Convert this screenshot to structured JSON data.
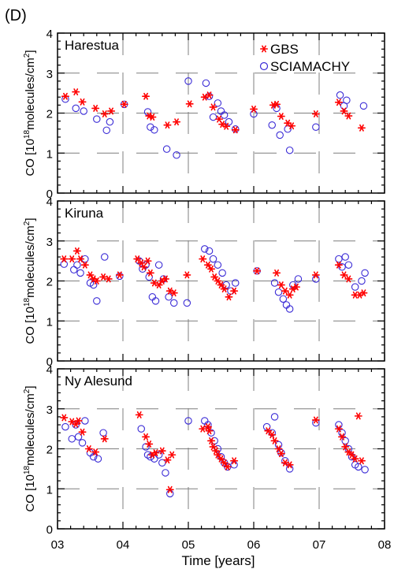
{
  "figure_label": "(D)",
  "colors": {
    "gbs": "#ff0000",
    "sciamachy": "#3a2bd6",
    "grid": "#7f7f7f"
  },
  "chart_data": {
    "type": "scatter",
    "xlabel": "Time [years]",
    "ylabel_base": "CO [10",
    "ylabel_exp": "18",
    "ylabel_mid": "molecules/cm",
    "ylabel_exp2": "2",
    "ylabel_end": "]",
    "x_ticks": [
      "03",
      "04",
      "05",
      "06",
      "07",
      "08"
    ],
    "xlim": [
      2003,
      2008
    ],
    "ylim": [
      0,
      4
    ],
    "y_ticks": [
      "0",
      "1",
      "2",
      "3",
      "4"
    ],
    "grid": true,
    "legend": {
      "placement": "top-right",
      "entries": [
        "GBS",
        "SCIAMACHY"
      ]
    },
    "panels": [
      {
        "name": "Harestua",
        "show_legend": true,
        "gbs": [
          [
            2003.12,
            2.42
          ],
          [
            2003.28,
            2.53
          ],
          [
            2003.38,
            2.28
          ],
          [
            2003.58,
            2.12
          ],
          [
            2003.72,
            1.98
          ],
          [
            2003.82,
            2.05
          ],
          [
            2004.02,
            2.22
          ],
          [
            2004.35,
            2.42
          ],
          [
            2004.4,
            1.93
          ],
          [
            2004.45,
            1.9
          ],
          [
            2004.68,
            1.7
          ],
          [
            2004.82,
            1.78
          ],
          [
            2005.02,
            2.23
          ],
          [
            2005.25,
            2.4
          ],
          [
            2005.32,
            2.45
          ],
          [
            2005.38,
            2.15
          ],
          [
            2005.47,
            1.85
          ],
          [
            2005.52,
            1.72
          ],
          [
            2005.58,
            1.67
          ],
          [
            2005.72,
            1.58
          ],
          [
            2006.0,
            2.1
          ],
          [
            2006.3,
            2.2
          ],
          [
            2006.35,
            2.22
          ],
          [
            2006.42,
            1.92
          ],
          [
            2006.52,
            1.75
          ],
          [
            2006.58,
            1.68
          ],
          [
            2006.95,
            1.98
          ],
          [
            2007.3,
            2.27
          ],
          [
            2007.38,
            2.05
          ],
          [
            2007.45,
            1.93
          ],
          [
            2007.65,
            1.63
          ]
        ],
        "sciamachy": [
          [
            2003.12,
            2.35
          ],
          [
            2003.28,
            2.12
          ],
          [
            2003.4,
            2.05
          ],
          [
            2003.6,
            1.85
          ],
          [
            2003.75,
            1.57
          ],
          [
            2003.8,
            1.78
          ],
          [
            2004.02,
            2.22
          ],
          [
            2004.38,
            2.03
          ],
          [
            2004.42,
            1.65
          ],
          [
            2004.48,
            1.58
          ],
          [
            2004.67,
            1.1
          ],
          [
            2004.82,
            0.95
          ],
          [
            2005.0,
            2.8
          ],
          [
            2005.27,
            2.75
          ],
          [
            2005.32,
            2.42
          ],
          [
            2005.38,
            1.9
          ],
          [
            2005.45,
            2.25
          ],
          [
            2005.5,
            2.05
          ],
          [
            2005.55,
            1.95
          ],
          [
            2005.62,
            1.78
          ],
          [
            2005.72,
            1.6
          ],
          [
            2006.0,
            1.98
          ],
          [
            2006.28,
            1.7
          ],
          [
            2006.35,
            2.12
          ],
          [
            2006.4,
            1.45
          ],
          [
            2006.52,
            1.6
          ],
          [
            2006.55,
            1.07
          ],
          [
            2006.95,
            1.65
          ],
          [
            2007.32,
            2.45
          ],
          [
            2007.38,
            2.18
          ],
          [
            2007.42,
            2.32
          ],
          [
            2007.68,
            2.18
          ]
        ]
      },
      {
        "name": "Kiruna",
        "show_legend": false,
        "gbs": [
          [
            2003.1,
            2.55
          ],
          [
            2003.22,
            2.55
          ],
          [
            2003.3,
            2.75
          ],
          [
            2003.35,
            2.55
          ],
          [
            2003.42,
            2.4
          ],
          [
            2003.5,
            2.15
          ],
          [
            2003.55,
            2.05
          ],
          [
            2003.6,
            2.0
          ],
          [
            2003.7,
            2.1
          ],
          [
            2003.78,
            2.05
          ],
          [
            2003.95,
            2.15
          ],
          [
            2004.22,
            2.55
          ],
          [
            2004.28,
            2.45
          ],
          [
            2004.32,
            2.35
          ],
          [
            2004.38,
            2.5
          ],
          [
            2004.42,
            2.2
          ],
          [
            2004.48,
            1.95
          ],
          [
            2004.55,
            1.9
          ],
          [
            2004.6,
            2.0
          ],
          [
            2004.65,
            2.05
          ],
          [
            2004.72,
            1.75
          ],
          [
            2004.78,
            1.7
          ],
          [
            2004.98,
            2.15
          ],
          [
            2005.22,
            2.55
          ],
          [
            2005.3,
            2.4
          ],
          [
            2005.35,
            2.3
          ],
          [
            2005.4,
            2.1
          ],
          [
            2005.45,
            2.0
          ],
          [
            2005.5,
            1.9
          ],
          [
            2005.55,
            1.8
          ],
          [
            2005.62,
            1.6
          ],
          [
            2005.7,
            1.75
          ],
          [
            2006.05,
            2.25
          ],
          [
            2006.35,
            2.2
          ],
          [
            2006.42,
            1.9
          ],
          [
            2006.48,
            1.75
          ],
          [
            2006.55,
            1.65
          ],
          [
            2006.6,
            1.8
          ],
          [
            2006.65,
            1.85
          ],
          [
            2006.95,
            2.15
          ],
          [
            2007.3,
            2.4
          ],
          [
            2007.38,
            2.15
          ],
          [
            2007.45,
            2.05
          ],
          [
            2007.55,
            1.65
          ],
          [
            2007.62,
            1.65
          ],
          [
            2007.68,
            1.7
          ]
        ],
        "sciamachy": [
          [
            2003.1,
            2.42
          ],
          [
            2003.25,
            2.28
          ],
          [
            2003.3,
            2.4
          ],
          [
            2003.35,
            2.2
          ],
          [
            2003.42,
            2.55
          ],
          [
            2003.5,
            1.95
          ],
          [
            2003.55,
            1.9
          ],
          [
            2003.6,
            1.5
          ],
          [
            2003.72,
            2.6
          ],
          [
            2003.95,
            2.12
          ],
          [
            2004.25,
            2.5
          ],
          [
            2004.3,
            2.3
          ],
          [
            2004.35,
            2.4
          ],
          [
            2004.4,
            2.1
          ],
          [
            2004.45,
            1.6
          ],
          [
            2004.5,
            1.5
          ],
          [
            2004.55,
            2.4
          ],
          [
            2004.62,
            2.05
          ],
          [
            2004.7,
            1.6
          ],
          [
            2004.78,
            1.45
          ],
          [
            2004.98,
            1.45
          ],
          [
            2005.25,
            2.8
          ],
          [
            2005.32,
            2.75
          ],
          [
            2005.38,
            2.55
          ],
          [
            2005.45,
            2.4
          ],
          [
            2005.52,
            2.2
          ],
          [
            2005.58,
            1.9
          ],
          [
            2005.65,
            1.75
          ],
          [
            2005.72,
            1.95
          ],
          [
            2006.05,
            2.25
          ],
          [
            2006.32,
            1.95
          ],
          [
            2006.38,
            1.72
          ],
          [
            2006.45,
            1.55
          ],
          [
            2006.5,
            1.4
          ],
          [
            2006.55,
            1.3
          ],
          [
            2006.6,
            1.9
          ],
          [
            2006.68,
            2.05
          ],
          [
            2006.95,
            2.05
          ],
          [
            2007.3,
            2.55
          ],
          [
            2007.35,
            2.35
          ],
          [
            2007.4,
            2.6
          ],
          [
            2007.45,
            2.4
          ],
          [
            2007.55,
            1.85
          ],
          [
            2007.65,
            2.0
          ],
          [
            2007.7,
            2.2
          ]
        ]
      },
      {
        "name": "Ny Alesund",
        "show_legend": false,
        "gbs": [
          [
            2003.1,
            2.78
          ],
          [
            2003.22,
            2.68
          ],
          [
            2003.28,
            2.62
          ],
          [
            2003.32,
            2.7
          ],
          [
            2003.38,
            2.42
          ],
          [
            2003.48,
            2.0
          ],
          [
            2003.58,
            1.92
          ],
          [
            2003.72,
            2.25
          ],
          [
            2004.25,
            2.85
          ],
          [
            2004.35,
            2.3
          ],
          [
            2004.4,
            2.12
          ],
          [
            2004.45,
            1.85
          ],
          [
            2004.5,
            1.9
          ],
          [
            2004.6,
            1.95
          ],
          [
            2004.68,
            1.72
          ],
          [
            2004.72,
            0.98
          ],
          [
            2004.75,
            1.85
          ],
          [
            2005.22,
            2.5
          ],
          [
            2005.3,
            2.55
          ],
          [
            2005.32,
            2.45
          ],
          [
            2005.35,
            2.2
          ],
          [
            2005.38,
            2.05
          ],
          [
            2005.42,
            1.95
          ],
          [
            2005.45,
            1.85
          ],
          [
            2005.5,
            1.75
          ],
          [
            2005.55,
            1.65
          ],
          [
            2005.6,
            1.55
          ],
          [
            2005.7,
            1.7
          ],
          [
            2006.22,
            2.45
          ],
          [
            2006.28,
            2.35
          ],
          [
            2006.32,
            2.2
          ],
          [
            2006.38,
            2.0
          ],
          [
            2006.42,
            1.88
          ],
          [
            2006.48,
            1.65
          ],
          [
            2006.55,
            1.6
          ],
          [
            2006.95,
            2.72
          ],
          [
            2007.3,
            2.5
          ],
          [
            2007.35,
            2.3
          ],
          [
            2007.4,
            2.05
          ],
          [
            2007.45,
            1.92
          ],
          [
            2007.5,
            1.85
          ],
          [
            2007.55,
            1.75
          ],
          [
            2007.6,
            2.82
          ],
          [
            2007.65,
            1.7
          ]
        ],
        "sciamachy": [
          [
            2003.12,
            2.55
          ],
          [
            2003.22,
            2.25
          ],
          [
            2003.28,
            2.6
          ],
          [
            2003.32,
            2.3
          ],
          [
            2003.38,
            2.15
          ],
          [
            2003.42,
            2.7
          ],
          [
            2003.5,
            1.9
          ],
          [
            2003.55,
            1.8
          ],
          [
            2003.62,
            1.75
          ],
          [
            2003.7,
            2.4
          ],
          [
            2004.28,
            2.5
          ],
          [
            2004.35,
            2.05
          ],
          [
            2004.38,
            1.85
          ],
          [
            2004.42,
            1.8
          ],
          [
            2004.48,
            1.75
          ],
          [
            2004.55,
            1.85
          ],
          [
            2004.6,
            1.65
          ],
          [
            2004.65,
            1.4
          ],
          [
            2004.72,
            0.88
          ],
          [
            2005.0,
            2.7
          ],
          [
            2005.25,
            2.7
          ],
          [
            2005.3,
            2.6
          ],
          [
            2005.35,
            2.4
          ],
          [
            2005.4,
            2.2
          ],
          [
            2005.45,
            2.0
          ],
          [
            2005.5,
            1.8
          ],
          [
            2005.55,
            1.65
          ],
          [
            2005.6,
            1.55
          ],
          [
            2005.7,
            1.6
          ],
          [
            2006.2,
            2.55
          ],
          [
            2006.28,
            2.4
          ],
          [
            2006.32,
            2.8
          ],
          [
            2006.38,
            2.1
          ],
          [
            2006.42,
            1.9
          ],
          [
            2006.48,
            1.7
          ],
          [
            2006.55,
            1.5
          ],
          [
            2006.95,
            2.65
          ],
          [
            2007.3,
            2.6
          ],
          [
            2007.35,
            2.4
          ],
          [
            2007.4,
            2.2
          ],
          [
            2007.45,
            2.0
          ],
          [
            2007.5,
            1.8
          ],
          [
            2007.55,
            1.6
          ],
          [
            2007.6,
            1.55
          ],
          [
            2007.7,
            1.48
          ]
        ]
      }
    ]
  }
}
